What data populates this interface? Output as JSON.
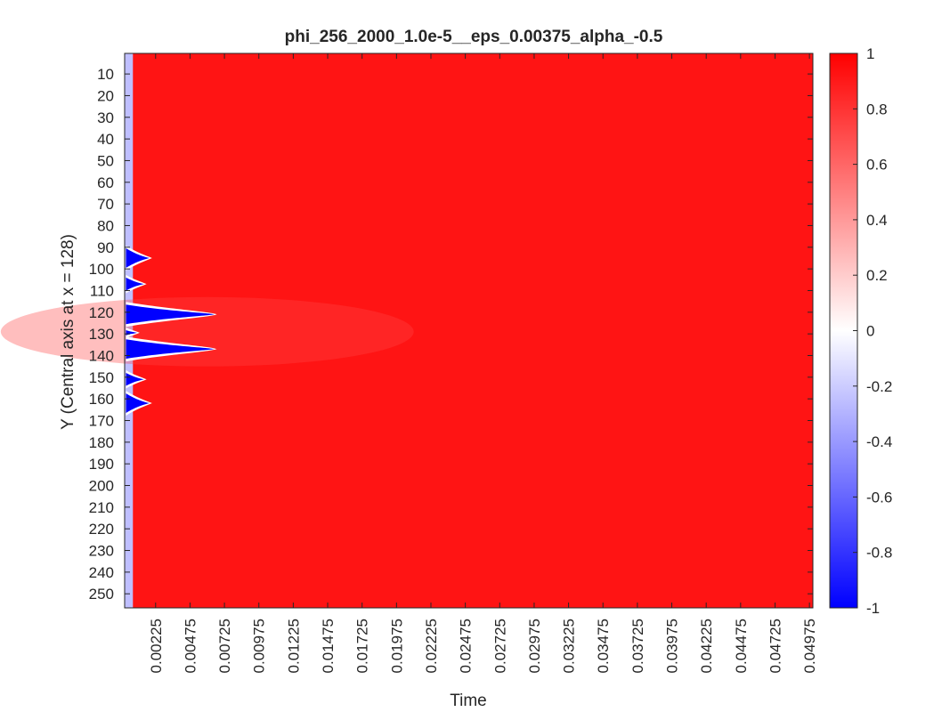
{
  "chart_data": {
    "type": "heatmap",
    "title": "phi_256_2000_1.0e-5__eps_0.00375_alpha_-0.5",
    "xlabel": "Time",
    "ylabel": "Y (Central axis at x = 128)",
    "xlim": [
      0,
      0.05
    ],
    "ylim": [
      256,
      1
    ],
    "x_ticks": [
      0.00225,
      0.00475,
      0.00725,
      0.00975,
      0.01225,
      0.01475,
      0.01725,
      0.01975,
      0.02225,
      0.02475,
      0.02725,
      0.02975,
      0.03225,
      0.03475,
      0.03725,
      0.03975,
      0.04225,
      0.04475,
      0.04725,
      0.04975
    ],
    "x_tick_labels": [
      "0.00225",
      "0.00475",
      "0.00725",
      "0.00975",
      "0.01225",
      "0.01475",
      "0.01725",
      "0.01975",
      "0.02225",
      "0.02475",
      "0.02725",
      "0.02975",
      "0.03225",
      "0.03475",
      "0.03725",
      "0.03975",
      "0.04225",
      "0.04475",
      "0.04725",
      "0.04975"
    ],
    "y_ticks": [
      10,
      20,
      30,
      40,
      50,
      60,
      70,
      80,
      90,
      100,
      110,
      120,
      130,
      140,
      150,
      160,
      170,
      180,
      190,
      200,
      210,
      220,
      230,
      240,
      250
    ],
    "y_tick_labels": [
      "10",
      "20",
      "30",
      "40",
      "50",
      "60",
      "70",
      "80",
      "90",
      "100",
      "110",
      "120",
      "130",
      "140",
      "150",
      "160",
      "170",
      "180",
      "190",
      "200",
      "210",
      "220",
      "230",
      "240",
      "250"
    ],
    "colorbar": {
      "limits": [
        -1,
        1
      ],
      "ticks": [
        1,
        0.8,
        0.6,
        0.4,
        0.2,
        0,
        -0.2,
        -0.4,
        -0.6,
        -0.8,
        -1
      ],
      "tick_labels": [
        "1",
        "0.8",
        "0.6",
        "0.4",
        "0.2",
        "0",
        "-0.2",
        "-0.4",
        "-0.6",
        "-0.8",
        "-1"
      ],
      "colormap": [
        {
          "value": -1,
          "color": "#0000ff"
        },
        {
          "value": 0,
          "color": "#ffffff"
        },
        {
          "value": 1,
          "color": "#ff0000"
        }
      ]
    },
    "background_value": 0.92,
    "initial_band": {
      "t_start": 0.0,
      "t_end": 0.0006,
      "value": -0.25
    },
    "features": [
      {
        "y_center": 95,
        "half_width": 4.5,
        "t_start": 0.0001,
        "t_end": 0.0018,
        "value": -1.0
      },
      {
        "y_center": 107,
        "half_width": 3.0,
        "t_start": 0.0001,
        "t_end": 0.0014,
        "value": -1.0
      },
      {
        "y_center": 121,
        "half_width": 4.5,
        "t_start": 0.0001,
        "t_end": 0.0065,
        "value": -1.0
      },
      {
        "y_center": 129.5,
        "half_width": 1.2,
        "t_start": 0.0001,
        "t_end": 0.0009,
        "value": -1.0
      },
      {
        "y_center": 137,
        "half_width": 4.5,
        "t_start": 0.0001,
        "t_end": 0.0065,
        "value": -1.0
      },
      {
        "y_center": 151,
        "half_width": 3.0,
        "t_start": 0.0001,
        "t_end": 0.0014,
        "value": -1.0
      },
      {
        "y_center": 162,
        "half_width": 4.5,
        "t_start": 0.0001,
        "t_end": 0.0018,
        "value": -1.0
      }
    ],
    "grid": false,
    "legend": "none"
  },
  "colors": {
    "axis_line": "#262626",
    "background": "#ffffff"
  }
}
